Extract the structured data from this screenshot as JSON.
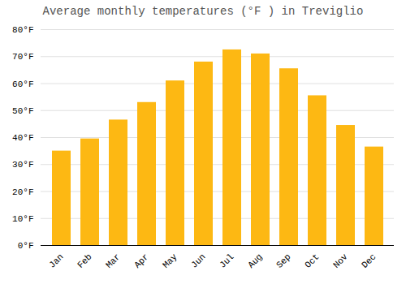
{
  "chart_data": {
    "type": "bar",
    "title": "Average monthly temperatures (°F ) in Treviglio",
    "categories": [
      "Jan",
      "Feb",
      "Mar",
      "Apr",
      "May",
      "Jun",
      "Jul",
      "Aug",
      "Sep",
      "Oct",
      "Nov",
      "Dec"
    ],
    "values": [
      35.0,
      39.5,
      46.5,
      53.0,
      61.0,
      68.0,
      72.5,
      71.0,
      65.5,
      55.5,
      44.5,
      36.5
    ],
    "color": "#FDB813",
    "ylim": [
      0,
      80
    ],
    "yticks": [
      {
        "value": 0,
        "label": "0°F"
      },
      {
        "value": 10,
        "label": "10°F"
      },
      {
        "value": 20,
        "label": "20°F"
      },
      {
        "value": 30,
        "label": "30°F"
      },
      {
        "value": 40,
        "label": "40°F"
      },
      {
        "value": 50,
        "label": "50°F"
      },
      {
        "value": 60,
        "label": "60°F"
      },
      {
        "value": 70,
        "label": "70°F"
      },
      {
        "value": 80,
        "label": "80°F"
      }
    ],
    "grid": true
  }
}
